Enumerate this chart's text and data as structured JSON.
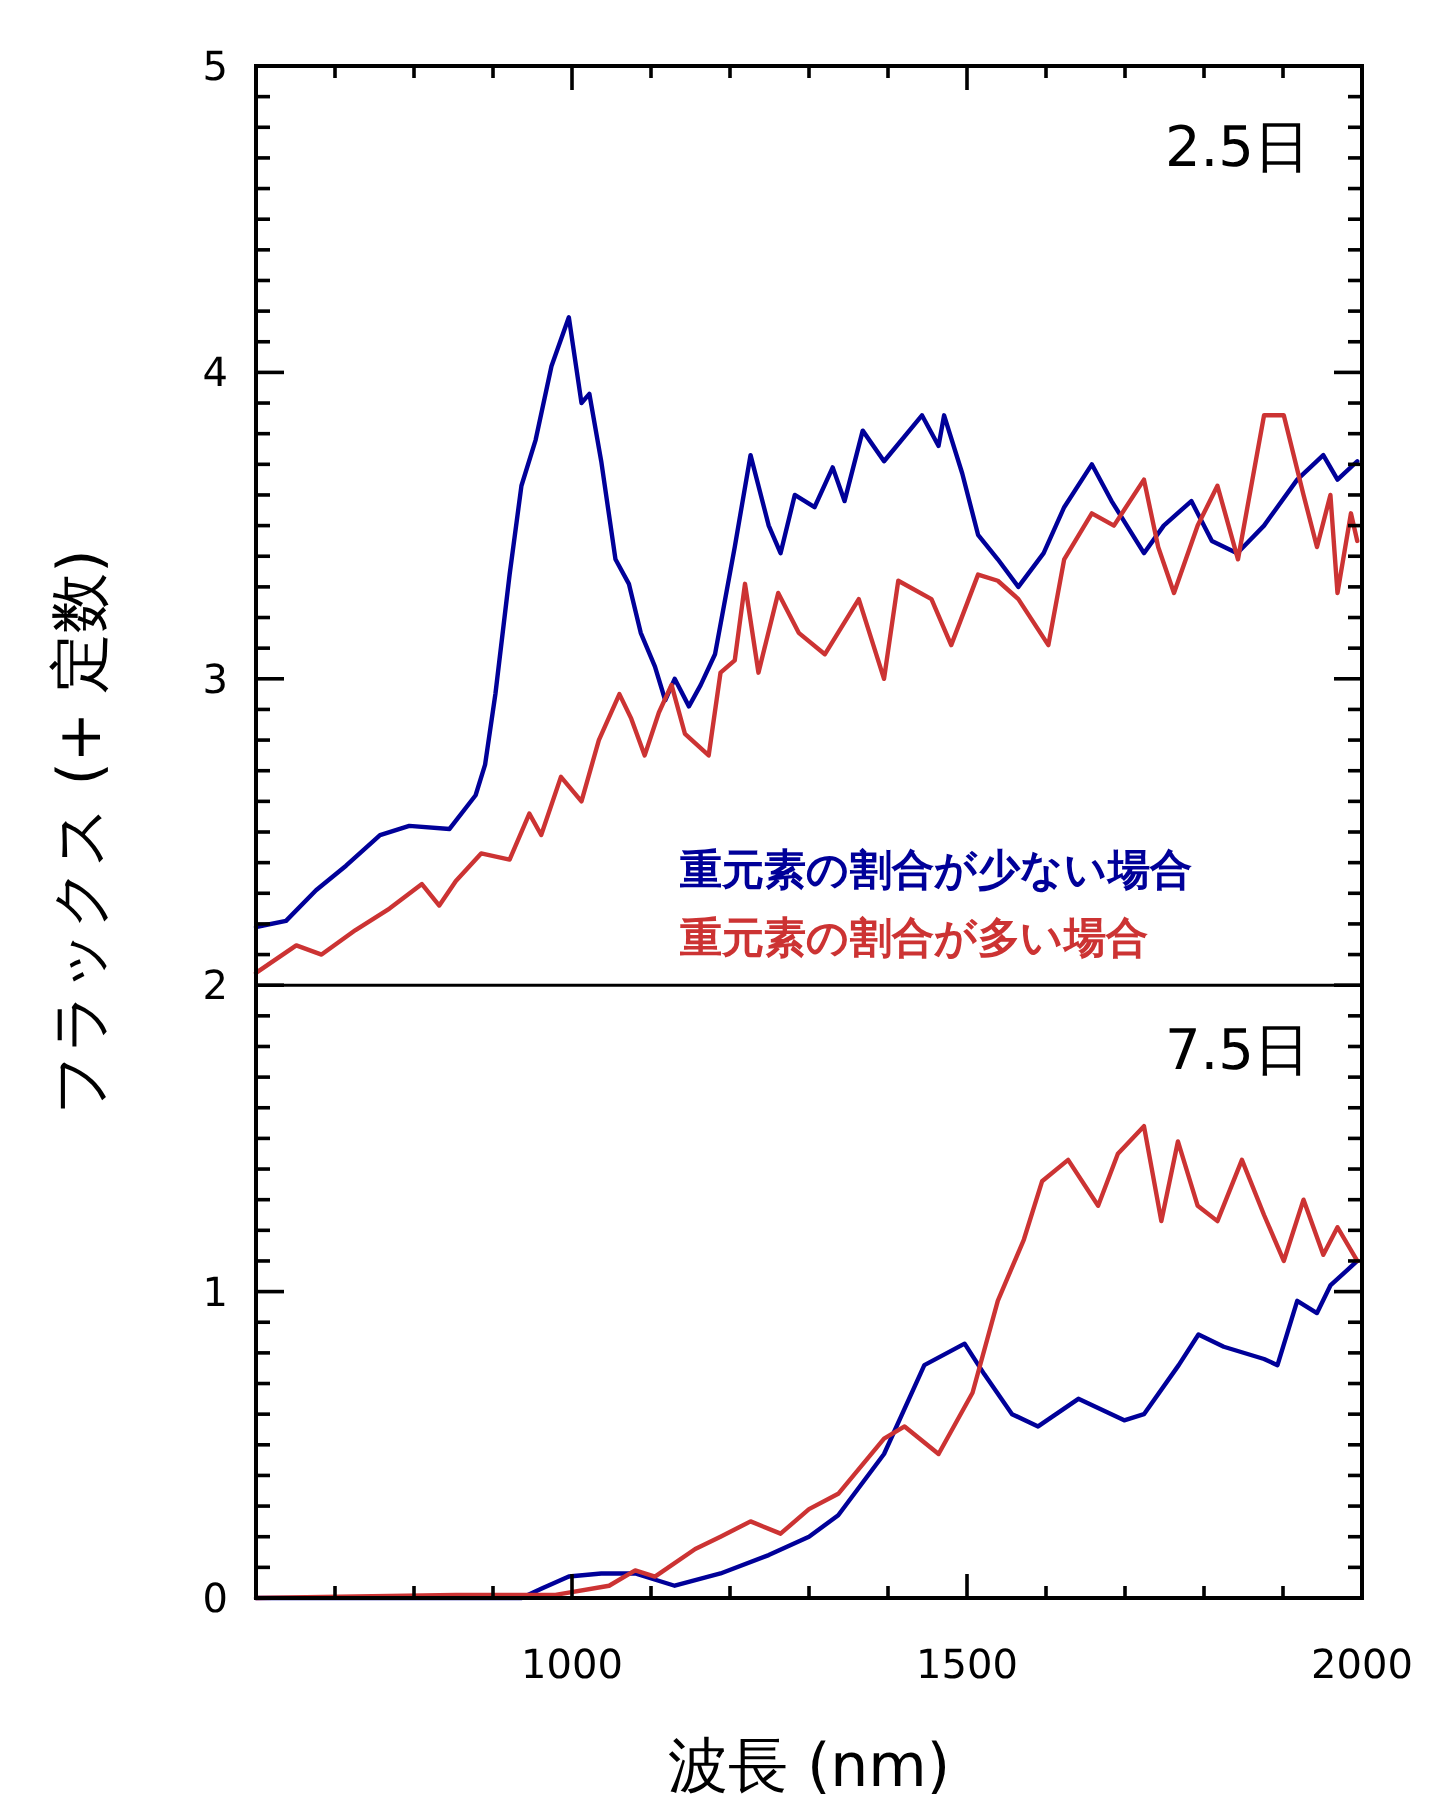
{
  "chart_data": {
    "type": "line",
    "xlabel": "波長 (nm)",
    "ylabel": "フラックス (+ 定数)",
    "annotations": [
      "2.5日",
      "7.5日"
    ],
    "xlim": [
      600,
      2000
    ],
    "ylim": [
      0,
      5
    ],
    "xticks": [
      {
        "value": 700,
        "label": null
      },
      {
        "value": 800,
        "label": null
      },
      {
        "value": 900,
        "label": null
      },
      1000,
      {
        "value": 1100,
        "label": null
      },
      {
        "value": 1200,
        "label": null
      },
      {
        "value": 1300,
        "label": null
      },
      {
        "value": 1400,
        "label": null
      },
      1500,
      {
        "value": 1600,
        "label": null
      },
      {
        "value": 1700,
        "label": null
      },
      {
        "value": 1800,
        "label": null
      },
      {
        "value": 1900,
        "label": null
      },
      2000
    ],
    "yticks": [
      0,
      {
        "value": 0.1,
        "label": null
      },
      {
        "value": 0.2,
        "label": null
      },
      {
        "value": 0.3,
        "label": null
      },
      {
        "value": 0.4,
        "label": null
      },
      {
        "value": 0.5,
        "label": null
      },
      {
        "value": 0.6,
        "label": null
      },
      {
        "value": 0.7,
        "label": null
      },
      {
        "value": 0.8,
        "label": null
      },
      {
        "value": 0.9,
        "label": null
      },
      1,
      {
        "value": 1.1,
        "label": null
      },
      {
        "value": 1.2,
        "label": null
      },
      {
        "value": 1.3,
        "label": null
      },
      {
        "value": 1.4,
        "label": null
      },
      {
        "value": 1.5,
        "label": null
      },
      {
        "value": 1.6,
        "label": null
      },
      {
        "value": 1.7,
        "label": null
      },
      {
        "value": 1.8,
        "label": null
      },
      {
        "value": 1.9,
        "label": null
      },
      2,
      {
        "value": 2.1,
        "label": null
      },
      {
        "value": 2.2,
        "label": null
      },
      {
        "value": 2.3,
        "label": null
      },
      {
        "value": 2.4,
        "label": null
      },
      {
        "value": 2.5,
        "label": null
      },
      {
        "value": 2.6,
        "label": null
      },
      {
        "value": 2.7,
        "label": null
      },
      {
        "value": 2.8,
        "label": null
      },
      {
        "value": 2.9,
        "label": null
      },
      3,
      {
        "value": 3.1,
        "label": null
      },
      {
        "value": 3.2,
        "label": null
      },
      {
        "value": 3.3,
        "label": null
      },
      {
        "value": 3.4,
        "label": null
      },
      {
        "value": 3.5,
        "label": null
      },
      {
        "value": 3.6,
        "label": null
      },
      {
        "value": 3.7,
        "label": null
      },
      {
        "value": 3.8,
        "label": null
      },
      {
        "value": 3.9,
        "label": null
      },
      4,
      {
        "value": 4.1,
        "label": null
      },
      {
        "value": 4.2,
        "label": null
      },
      {
        "value": 4.3,
        "label": null
      },
      {
        "value": 4.4,
        "label": null
      },
      {
        "value": 4.5,
        "label": null
      },
      {
        "value": 4.6,
        "label": null
      },
      {
        "value": 4.7,
        "label": null
      },
      {
        "value": 4.8,
        "label": null
      },
      {
        "value": 4.9,
        "label": null
      },
      5
    ],
    "ref_lines": [
      {
        "axis": "y",
        "value": 2,
        "color": "#000000"
      }
    ],
    "legend": "right",
    "grid": false,
    "marker": "none",
    "line_style": "solid",
    "series": [
      {
        "name": "重元素の割合が少ない場合",
        "color": "#000099",
        "x": [
          600,
          638,
          676,
          714,
          757,
          794,
          845,
          878,
          890,
          903,
          921,
          936,
          954,
          974,
          996,
          1012,
          1022,
          1037,
          1055,
          1072,
          1087,
          1105,
          1118,
          1130,
          1148,
          1163,
          1181,
          1206,
          1226,
          1249,
          1264,
          1282,
          1307,
          1330,
          1345,
          1368,
          1395,
          1443,
          1464,
          1471,
          1494,
          1514,
          1539,
          1565,
          1597,
          1623,
          1658,
          1683,
          1724,
          1749,
          1784,
          1810,
          1842,
          1876,
          1918,
          1951,
          1969,
          1994
        ],
        "values": [
          2.19,
          2.21,
          2.31,
          2.39,
          2.49,
          2.52,
          2.51,
          2.62,
          2.72,
          2.95,
          3.34,
          3.63,
          3.78,
          4.02,
          4.18,
          3.9,
          3.93,
          3.71,
          3.39,
          3.31,
          3.15,
          3.04,
          2.93,
          3.0,
          2.91,
          2.98,
          3.08,
          3.43,
          3.73,
          3.5,
          3.41,
          3.6,
          3.56,
          3.69,
          3.58,
          3.81,
          3.71,
          3.86,
          3.76,
          3.86,
          3.67,
          3.47,
          3.39,
          3.3,
          3.41,
          3.56,
          3.7,
          3.58,
          3.41,
          3.5,
          3.58,
          3.45,
          3.41,
          3.5,
          3.65,
          3.73,
          3.65,
          3.71
        ]
      },
      {
        "name": "重元素の割合が多い場合",
        "color": "#cc3333",
        "x": [
          600,
          651,
          683,
          726,
          769,
          810,
          832,
          853,
          885,
          921,
          946,
          961,
          986,
          1012,
          1034,
          1060,
          1075,
          1092,
          1110,
          1126,
          1143,
          1173,
          1188,
          1206,
          1219,
          1236,
          1261,
          1287,
          1320,
          1363,
          1395,
          1413,
          1455,
          1480,
          1514,
          1539,
          1565,
          1603,
          1623,
          1658,
          1686,
          1724,
          1742,
          1762,
          1792,
          1817,
          1843,
          1876,
          1901,
          1926,
          1943,
          1960,
          1969,
          1986,
          1994
        ],
        "values": [
          2.04,
          2.13,
          2.1,
          2.18,
          2.25,
          2.33,
          2.26,
          2.34,
          2.43,
          2.41,
          2.56,
          2.49,
          2.68,
          2.6,
          2.8,
          2.95,
          2.87,
          2.75,
          2.89,
          2.98,
          2.82,
          2.75,
          3.02,
          3.06,
          3.31,
          3.02,
          3.28,
          3.15,
          3.08,
          3.26,
          3.0,
          3.32,
          3.26,
          3.11,
          3.34,
          3.32,
          3.26,
          3.11,
          3.39,
          3.54,
          3.5,
          3.65,
          3.43,
          3.28,
          3.5,
          3.63,
          3.39,
          3.86,
          3.86,
          3.6,
          3.43,
          3.6,
          3.28,
          3.54,
          3.45
        ]
      },
      {
        "color": "#000099",
        "x": [
          600,
          900,
          936,
          961,
          996,
          1037,
          1080,
          1130,
          1188,
          1249,
          1300,
          1337,
          1395,
          1446,
          1497,
          1522,
          1557,
          1590,
          1641,
          1699,
          1724,
          1768,
          1793,
          1825,
          1876,
          1893,
          1918,
          1943,
          1960,
          1994
        ],
        "values": [
          0,
          0,
          0,
          0.03,
          0.07,
          0.08,
          0.08,
          0.04,
          0.08,
          0.14,
          0.2,
          0.27,
          0.47,
          0.76,
          0.83,
          0.73,
          0.6,
          0.56,
          0.65,
          0.58,
          0.6,
          0.76,
          0.86,
          0.82,
          0.78,
          0.76,
          0.97,
          0.93,
          1.02,
          1.1
        ]
      },
      {
        "color": "#cc3333",
        "x": [
          600,
          853,
          979,
          1047,
          1080,
          1105,
          1156,
          1188,
          1226,
          1264,
          1300,
          1337,
          1395,
          1421,
          1464,
          1507,
          1539,
          1572,
          1595,
          1628,
          1666,
          1691,
          1724,
          1746,
          1767,
          1792,
          1817,
          1848,
          1876,
          1901,
          1926,
          1951,
          1969,
          1994
        ],
        "values": [
          0,
          0.01,
          0.01,
          0.04,
          0.09,
          0.07,
          0.16,
          0.2,
          0.25,
          0.21,
          0.29,
          0.34,
          0.52,
          0.56,
          0.47,
          0.67,
          0.97,
          1.17,
          1.36,
          1.43,
          1.28,
          1.45,
          1.54,
          1.23,
          1.49,
          1.28,
          1.23,
          1.43,
          1.25,
          1.1,
          1.3,
          1.12,
          1.21,
          1.1
        ]
      }
    ]
  }
}
